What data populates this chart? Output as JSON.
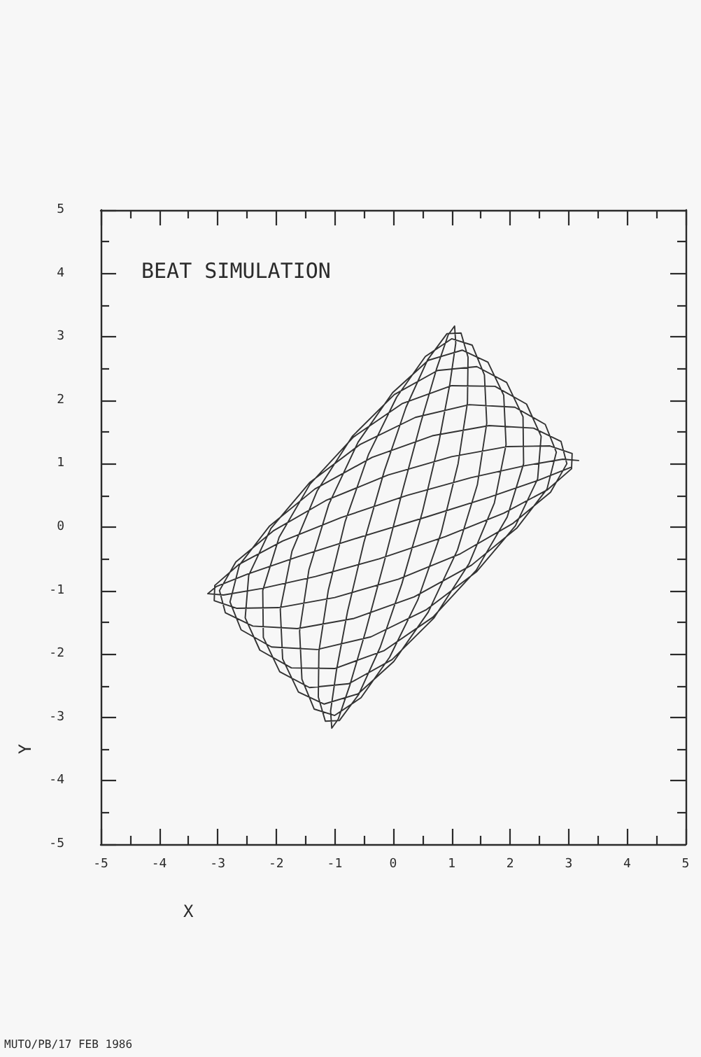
{
  "chart_data": {
    "type": "line",
    "title": "BEAT SIMULATION",
    "xlabel": "X",
    "ylabel": "Y",
    "x": [
      3.17,
      2.9,
      2.26,
      1.33,
      0.24,
      -0.89,
      -1.89,
      -2.64,
      -3.05,
      -3.06,
      -2.68,
      -1.96,
      -1.0,
      0.09,
      1.15,
      2.05,
      2.69,
      2.97,
      2.87,
      2.4,
      1.64,
      0.67,
      -0.36,
      -1.34,
      -2.12,
      -2.63,
      -2.79,
      -2.6,
      -2.08,
      -1.3,
      -0.38,
      0.57,
      1.43,
      2.09,
      2.47,
      2.53,
      2.28,
      1.74,
      1.0,
      0.16,
      -0.68,
      -1.42,
      -1.95,
      -2.23,
      -2.22,
      -1.94,
      -1.43,
      -0.76,
      -0.02,
      0.7,
      1.3,
      1.73,
      1.93,
      1.89,
      1.62,
      1.18,
      0.6,
      -0.01,
      -0.6,
      -1.1,
      -1.44,
      -1.6,
      -1.56,
      -1.35,
      -1.0,
      -0.55,
      -0.06,
      0.42,
      0.82,
      1.11,
      1.27,
      1.28,
      1.16,
      0.92,
      0.59,
      0.22,
      -0.15,
      -0.5,
      -0.78,
      -0.97,
      -1.07,
      -1.05,
      -0.94,
      -0.74,
      -0.47,
      -0.16,
      0.16,
      0.47,
      0.74,
      0.94,
      1.05,
      1.07,
      0.97,
      0.78,
      0.5,
      0.15,
      -0.22,
      -0.59,
      -0.92,
      -1.16,
      -1.28,
      -1.27,
      -1.11,
      -0.82,
      -0.42,
      0.06,
      0.55,
      1.0,
      1.35,
      1.56,
      1.6,
      1.44,
      1.1,
      0.6,
      0.01,
      -0.6,
      -1.18,
      -1.62,
      -1.89,
      -1.93,
      -1.73,
      -1.3,
      -0.7,
      0.02,
      0.76,
      1.43,
      1.94,
      2.22,
      2.23,
      1.95,
      1.42,
      0.68,
      -0.16,
      -1.0,
      -1.74,
      -2.28,
      -2.53,
      -2.47,
      -2.09,
      -1.43,
      -0.57,
      0.38,
      1.3,
      2.08,
      2.6,
      2.79,
      2.63,
      2.12,
      1.34,
      0.36,
      -0.67,
      -1.64,
      -2.4,
      -2.87,
      -2.97,
      -2.69,
      -2.05,
      -1.15,
      -0.09,
      1.0,
      1.96,
      2.68,
      3.06,
      3.05,
      2.64,
      1.89,
      0.89,
      -0.24,
      -1.33,
      -2.26,
      -2.9,
      -3.17,
      -3.03,
      -2.49,
      -1.64,
      -0.57,
      0.57,
      1.64,
      2.49,
      3.03
    ],
    "values": [
      1.05,
      1.07,
      0.97,
      0.78,
      0.5,
      0.15,
      -0.22,
      -0.59,
      -0.92,
      -1.16,
      -1.28,
      -1.27,
      -1.11,
      -0.82,
      -0.42,
      0.06,
      0.55,
      1.0,
      1.35,
      1.56,
      1.6,
      1.44,
      1.1,
      0.6,
      0.01,
      -0.6,
      -1.18,
      -1.62,
      -1.89,
      -1.93,
      -1.73,
      -1.3,
      -0.7,
      0.02,
      0.76,
      1.43,
      1.94,
      2.22,
      2.23,
      1.95,
      1.42,
      0.68,
      -0.16,
      -1.0,
      -1.74,
      -2.28,
      -2.53,
      -2.47,
      -2.09,
      -1.43,
      -0.57,
      0.38,
      1.3,
      2.08,
      2.6,
      2.79,
      2.63,
      2.12,
      1.34,
      0.36,
      -0.67,
      -1.64,
      -2.4,
      -2.87,
      -2.97,
      -2.69,
      -2.05,
      -1.15,
      -0.09,
      1.0,
      1.96,
      2.68,
      3.06,
      3.05,
      2.64,
      1.89,
      0.89,
      -0.24,
      -1.33,
      -2.26,
      -2.9,
      -3.17,
      -3.03,
      -2.49,
      -1.64,
      -0.57,
      0.57,
      1.64,
      2.49,
      3.03,
      3.17,
      2.9,
      2.26,
      1.33,
      0.24,
      -0.89,
      -1.89,
      -2.64,
      -3.05,
      -3.06,
      -2.68,
      -1.96,
      -1.0,
      0.09,
      1.15,
      2.05,
      2.69,
      2.97,
      2.87,
      2.4,
      1.64,
      0.67,
      -0.36,
      -1.34,
      -2.12,
      -2.63,
      -2.79,
      -2.6,
      -2.08,
      -1.3,
      -0.38,
      0.57,
      1.43,
      2.09,
      2.47,
      2.53,
      2.28,
      1.74,
      1.0,
      0.16,
      -0.68,
      -1.42,
      -1.95,
      -2.23,
      -2.22,
      -1.94,
      -1.43,
      -0.76,
      -0.02,
      0.7,
      1.3,
      1.73,
      1.93,
      1.89,
      1.62,
      1.18,
      0.6,
      -0.01,
      -0.6,
      -1.1,
      -1.44,
      -1.6,
      -1.56,
      -1.35,
      -1.0,
      -0.55,
      -0.06,
      0.42,
      0.82,
      1.11,
      1.27,
      1.28,
      1.16,
      0.92,
      0.59,
      0.22,
      -0.15,
      -0.5,
      -0.78,
      -0.97,
      -1.07,
      -1.05,
      -0.94,
      -0.74,
      -0.47,
      -0.16,
      0.16,
      0.47,
      0.74,
      0.94
    ],
    "color": "#333333",
    "xlim": [
      -5,
      5
    ],
    "xticks": [
      -5,
      {
        "value": -4.5,
        "label": null
      },
      -4,
      {
        "value": -3.5,
        "label": null
      },
      -3,
      {
        "value": -2.5,
        "label": null
      },
      -2,
      {
        "value": -1.5,
        "label": null
      },
      -1,
      {
        "value": -0.5,
        "label": null
      },
      0,
      {
        "value": 0.5,
        "label": null
      },
      1,
      {
        "value": 1.5,
        "label": null
      },
      2,
      {
        "value": 2.5,
        "label": null
      },
      3,
      {
        "value": 3.5,
        "label": null
      },
      4,
      {
        "value": 4.5,
        "label": null
      },
      5
    ],
    "ylim": [
      -5,
      5
    ],
    "yticks": [
      -5,
      {
        "value": -4.5,
        "label": null
      },
      -4,
      {
        "value": -3.5,
        "label": null
      },
      -3,
      {
        "value": -2.5,
        "label": null
      },
      -2,
      {
        "value": -1.5,
        "label": null
      },
      -1,
      {
        "value": -0.5,
        "label": null
      },
      0,
      {
        "value": 0.5,
        "label": null
      },
      1,
      {
        "value": 1.5,
        "label": null
      },
      2,
      {
        "value": 2.5,
        "label": null
      },
      3,
      {
        "value": 3.5,
        "label": null
      },
      4,
      {
        "value": 4.5,
        "label": null
      },
      5
    ],
    "grid": false,
    "marker": "none",
    "line_style": "solid",
    "annotations": [
      "MUTO/PB/17 FEB 1986"
    ]
  }
}
